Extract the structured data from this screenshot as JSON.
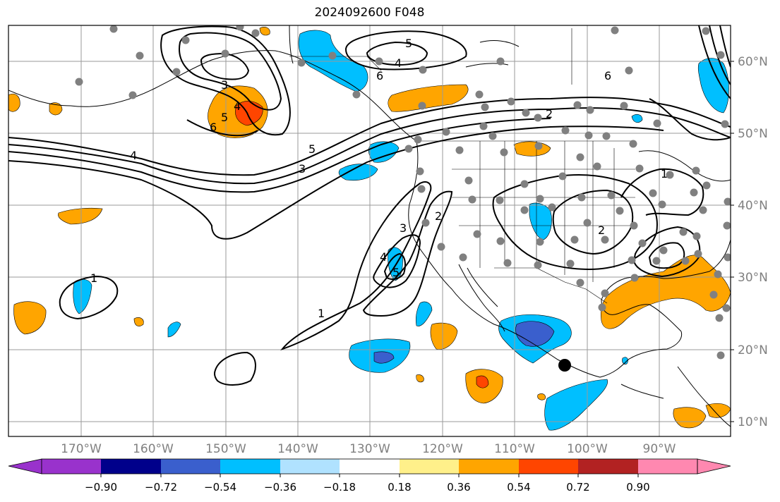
{
  "title": "2024092600 F048",
  "latitude_labels": [
    "60°N",
    "50°N",
    "40°N",
    "30°N",
    "20°N",
    "10°N"
  ],
  "longitude_labels": [
    "170°W",
    "160°W",
    "150°W",
    "140°W",
    "130°W",
    "120°W",
    "110°W",
    "100°W",
    "90°W"
  ],
  "colorbar": {
    "tick_labels": [
      "−0.90",
      "−0.72",
      "−0.54",
      "−0.36",
      "−0.18",
      "0.18",
      "0.36",
      "0.54",
      "0.72",
      "0.90"
    ],
    "colors": [
      "#9932cc",
      "#00008b",
      "#3a5fcd",
      "#00bfff",
      "#b0e2ff",
      "#ffffff",
      "#fff08a",
      "#ffa500",
      "#ff4500",
      "#b22222",
      "#ff88b0"
    ]
  },
  "contour_labels": [
    "5",
    "4",
    "6",
    "3",
    "4",
    "5",
    "6",
    "4",
    "5",
    "3",
    "6",
    "2",
    "3",
    "2",
    "5",
    "4",
    "1",
    "1",
    "2",
    "1"
  ],
  "colors": {
    "station": "#808080",
    "marker": "#000000",
    "grid": "#9a9a9a",
    "coast": "#000000"
  },
  "icons": {
    "station": "filled-gray-circle",
    "marker": "filled-black-circle"
  }
}
